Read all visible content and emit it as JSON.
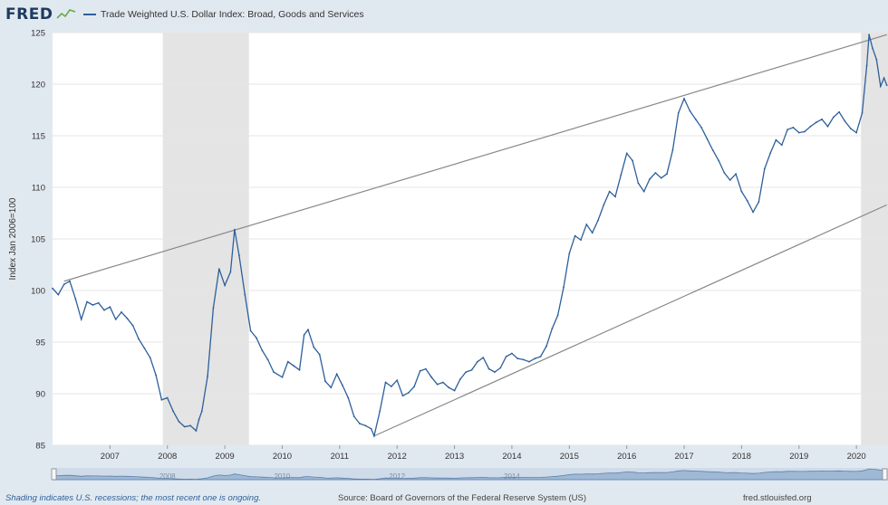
{
  "header": {
    "logo_text": "FRED",
    "legend_label": "Trade Weighted U.S. Dollar Index: Broad, Goods and Services",
    "series_color": "#2d5f9a"
  },
  "footer": {
    "recession_note": "Shading indicates U.S. recessions; the most recent one is ongoing.",
    "source": "Source: Board of Governors of the Federal Reserve System (US)",
    "site": "fred.stlouisfed.org"
  },
  "navigator": {
    "year_labels": [
      "2008",
      "2010",
      "2012",
      "2014"
    ]
  },
  "chart_data": {
    "type": "line",
    "title": "",
    "xlabel": "",
    "ylabel": "Index Jan 2006=100",
    "xlim": [
      2006.0,
      2020.55
    ],
    "ylim": [
      85,
      125
    ],
    "x_ticks": [
      2007,
      2008,
      2009,
      2010,
      2011,
      2012,
      2013,
      2014,
      2015,
      2016,
      2017,
      2018,
      2019,
      2020
    ],
    "y_ticks": [
      85,
      90,
      95,
      100,
      105,
      110,
      115,
      120,
      125
    ],
    "grid": "horizontal",
    "legend_position": "top-left",
    "recessions": [
      [
        2007.92,
        2009.42
      ],
      [
        2020.08,
        2020.55
      ]
    ],
    "series": [
      {
        "name": "Trade Weighted U.S. Dollar Index: Broad, Goods and Services",
        "points": [
          [
            2006.0,
            100.2
          ],
          [
            2006.1,
            99.6
          ],
          [
            2006.2,
            100.6
          ],
          [
            2006.3,
            100.9
          ],
          [
            2006.4,
            99.2
          ],
          [
            2006.5,
            97.2
          ],
          [
            2006.6,
            98.9
          ],
          [
            2006.7,
            98.6
          ],
          [
            2006.8,
            98.8
          ],
          [
            2006.9,
            98.1
          ],
          [
            2007.0,
            98.4
          ],
          [
            2007.1,
            97.2
          ],
          [
            2007.2,
            97.9
          ],
          [
            2007.3,
            97.3
          ],
          [
            2007.4,
            96.6
          ],
          [
            2007.5,
            95.3
          ],
          [
            2007.6,
            94.4
          ],
          [
            2007.7,
            93.5
          ],
          [
            2007.8,
            91.8
          ],
          [
            2007.9,
            89.4
          ],
          [
            2008.0,
            89.6
          ],
          [
            2008.1,
            88.3
          ],
          [
            2008.2,
            87.3
          ],
          [
            2008.3,
            86.8
          ],
          [
            2008.4,
            86.9
          ],
          [
            2008.5,
            86.4
          ],
          [
            2008.55,
            87.5
          ],
          [
            2008.6,
            88.3
          ],
          [
            2008.7,
            91.7
          ],
          [
            2008.8,
            98.3
          ],
          [
            2008.9,
            102.1
          ],
          [
            2009.0,
            100.5
          ],
          [
            2009.1,
            101.8
          ],
          [
            2009.17,
            105.9
          ],
          [
            2009.25,
            103.4
          ],
          [
            2009.35,
            99.6
          ],
          [
            2009.45,
            96.1
          ],
          [
            2009.55,
            95.4
          ],
          [
            2009.65,
            94.2
          ],
          [
            2009.75,
            93.3
          ],
          [
            2009.85,
            92.1
          ],
          [
            2010.0,
            91.6
          ],
          [
            2010.1,
            93.1
          ],
          [
            2010.2,
            92.7
          ],
          [
            2010.3,
            92.3
          ],
          [
            2010.38,
            95.7
          ],
          [
            2010.45,
            96.2
          ],
          [
            2010.55,
            94.5
          ],
          [
            2010.65,
            93.8
          ],
          [
            2010.75,
            91.2
          ],
          [
            2010.85,
            90.6
          ],
          [
            2010.95,
            91.9
          ],
          [
            2011.05,
            90.8
          ],
          [
            2011.15,
            89.6
          ],
          [
            2011.25,
            87.8
          ],
          [
            2011.35,
            87.1
          ],
          [
            2011.45,
            86.9
          ],
          [
            2011.55,
            86.6
          ],
          [
            2011.6,
            85.9
          ],
          [
            2011.7,
            88.3
          ],
          [
            2011.8,
            91.1
          ],
          [
            2011.9,
            90.7
          ],
          [
            2012.0,
            91.3
          ],
          [
            2012.1,
            89.8
          ],
          [
            2012.2,
            90.1
          ],
          [
            2012.3,
            90.7
          ],
          [
            2012.4,
            92.2
          ],
          [
            2012.5,
            92.4
          ],
          [
            2012.6,
            91.6
          ],
          [
            2012.7,
            90.9
          ],
          [
            2012.8,
            91.1
          ],
          [
            2012.9,
            90.6
          ],
          [
            2013.0,
            90.3
          ],
          [
            2013.1,
            91.4
          ],
          [
            2013.2,
            92.1
          ],
          [
            2013.3,
            92.3
          ],
          [
            2013.4,
            93.1
          ],
          [
            2013.5,
            93.5
          ],
          [
            2013.6,
            92.4
          ],
          [
            2013.7,
            92.1
          ],
          [
            2013.8,
            92.5
          ],
          [
            2013.9,
            93.6
          ],
          [
            2014.0,
            93.9
          ],
          [
            2014.1,
            93.4
          ],
          [
            2014.2,
            93.3
          ],
          [
            2014.3,
            93.1
          ],
          [
            2014.4,
            93.4
          ],
          [
            2014.5,
            93.6
          ],
          [
            2014.6,
            94.6
          ],
          [
            2014.7,
            96.3
          ],
          [
            2014.8,
            97.6
          ],
          [
            2014.9,
            100.3
          ],
          [
            2015.0,
            103.6
          ],
          [
            2015.1,
            105.3
          ],
          [
            2015.2,
            104.9
          ],
          [
            2015.3,
            106.4
          ],
          [
            2015.4,
            105.6
          ],
          [
            2015.5,
            106.8
          ],
          [
            2015.6,
            108.3
          ],
          [
            2015.7,
            109.6
          ],
          [
            2015.8,
            109.1
          ],
          [
            2015.9,
            111.2
          ],
          [
            2016.0,
            113.3
          ],
          [
            2016.1,
            112.6
          ],
          [
            2016.2,
            110.4
          ],
          [
            2016.3,
            109.6
          ],
          [
            2016.4,
            110.8
          ],
          [
            2016.5,
            111.4
          ],
          [
            2016.6,
            110.9
          ],
          [
            2016.7,
            111.3
          ],
          [
            2016.8,
            113.6
          ],
          [
            2016.9,
            117.2
          ],
          [
            2017.0,
            118.6
          ],
          [
            2017.1,
            117.4
          ],
          [
            2017.2,
            116.6
          ],
          [
            2017.3,
            115.8
          ],
          [
            2017.4,
            114.7
          ],
          [
            2017.5,
            113.6
          ],
          [
            2017.6,
            112.6
          ],
          [
            2017.7,
            111.4
          ],
          [
            2017.8,
            110.7
          ],
          [
            2017.9,
            111.3
          ],
          [
            2018.0,
            109.6
          ],
          [
            2018.1,
            108.7
          ],
          [
            2018.2,
            107.6
          ],
          [
            2018.3,
            108.6
          ],
          [
            2018.4,
            111.8
          ],
          [
            2018.5,
            113.3
          ],
          [
            2018.6,
            114.6
          ],
          [
            2018.7,
            114.1
          ],
          [
            2018.8,
            115.6
          ],
          [
            2018.9,
            115.8
          ],
          [
            2019.0,
            115.3
          ],
          [
            2019.1,
            115.4
          ],
          [
            2019.2,
            115.9
          ],
          [
            2019.3,
            116.3
          ],
          [
            2019.4,
            116.6
          ],
          [
            2019.5,
            115.9
          ],
          [
            2019.6,
            116.8
          ],
          [
            2019.7,
            117.3
          ],
          [
            2019.8,
            116.4
          ],
          [
            2019.9,
            115.7
          ],
          [
            2020.0,
            115.3
          ],
          [
            2020.1,
            117.2
          ],
          [
            2020.18,
            121.8
          ],
          [
            2020.22,
            124.8
          ],
          [
            2020.28,
            123.5
          ],
          [
            2020.35,
            122.4
          ],
          [
            2020.42,
            119.8
          ],
          [
            2020.48,
            120.6
          ],
          [
            2020.53,
            119.9
          ]
        ]
      }
    ],
    "annotations": [
      {
        "type": "trendline",
        "from": [
          2006.2,
          100.9
        ],
        "to": [
          2020.53,
          124.8
        ]
      },
      {
        "type": "trendline",
        "from": [
          2011.6,
          85.9
        ],
        "to": [
          2020.53,
          108.3
        ]
      }
    ]
  }
}
